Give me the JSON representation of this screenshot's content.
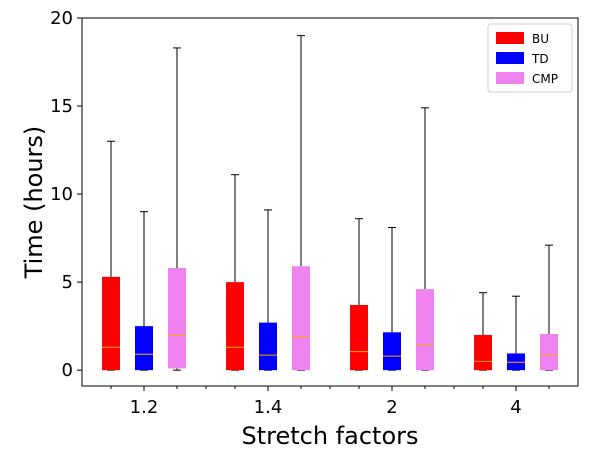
{
  "chart_data": {
    "type": "box",
    "xlabel": "Stretch factors",
    "ylabel": "Time (hours)",
    "ylim": [
      -0.9,
      20.0
    ],
    "yticks": [
      0,
      5,
      10,
      15,
      20
    ],
    "categories": [
      "1.2",
      "1.4",
      "2",
      "4"
    ],
    "series": [
      {
        "name": "BU",
        "color": "#ff0000",
        "boxes": [
          {
            "whisker_low": 0.0,
            "q1": 0.0,
            "median": 1.3,
            "q3": 5.3,
            "whisker_high": 13.0
          },
          {
            "whisker_low": 0.0,
            "q1": 0.0,
            "median": 1.3,
            "q3": 5.0,
            "whisker_high": 11.1
          },
          {
            "whisker_low": 0.0,
            "q1": 0.0,
            "median": 1.05,
            "q3": 3.7,
            "whisker_high": 8.6
          },
          {
            "whisker_low": 0.0,
            "q1": 0.0,
            "median": 0.5,
            "q3": 2.0,
            "whisker_high": 4.4
          }
        ]
      },
      {
        "name": "TD",
        "color": "#0000ff",
        "boxes": [
          {
            "whisker_low": 0.0,
            "q1": 0.0,
            "median": 0.9,
            "q3": 2.5,
            "whisker_high": 9.0
          },
          {
            "whisker_low": 0.0,
            "q1": 0.0,
            "median": 0.85,
            "q3": 2.7,
            "whisker_high": 9.1
          },
          {
            "whisker_low": 0.0,
            "q1": 0.0,
            "median": 0.8,
            "q3": 2.15,
            "whisker_high": 8.1
          },
          {
            "whisker_low": 0.0,
            "q1": 0.0,
            "median": 0.45,
            "q3": 0.95,
            "whisker_high": 4.2
          }
        ]
      },
      {
        "name": "CMP",
        "color": "#ee82ee",
        "boxes": [
          {
            "whisker_low": 0.0,
            "q1": 0.1,
            "median": 2.0,
            "q3": 5.8,
            "whisker_high": 18.3
          },
          {
            "whisker_low": 0.0,
            "q1": 0.0,
            "median": 1.9,
            "q3": 5.9,
            "whisker_high": 19.0
          },
          {
            "whisker_low": 0.0,
            "q1": 0.0,
            "median": 1.4,
            "q3": 4.6,
            "whisker_high": 14.9
          },
          {
            "whisker_low": 0.0,
            "q1": 0.0,
            "median": 0.85,
            "q3": 2.05,
            "whisker_high": 7.1
          }
        ]
      }
    ],
    "median_color": "#ffa500",
    "legend": {
      "placement": "top-right"
    },
    "grid": false
  }
}
